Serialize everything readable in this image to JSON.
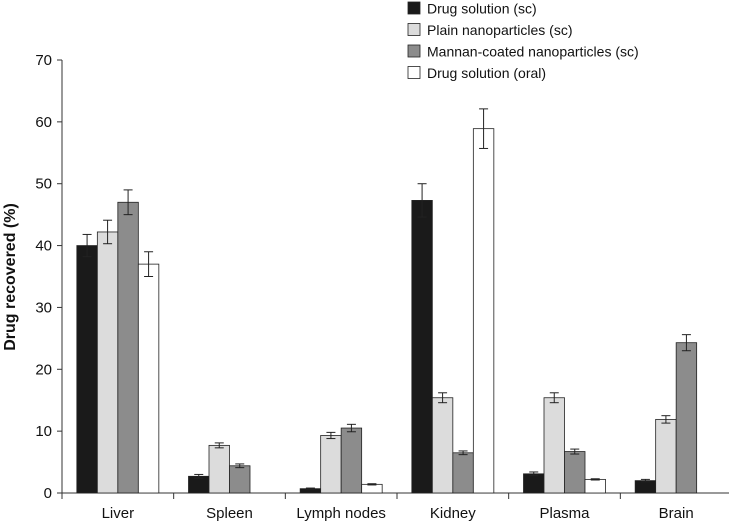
{
  "chart_data": {
    "type": "bar",
    "title": "",
    "xlabel": "",
    "ylabel": "Drug recovered (%)",
    "ylim": [
      0,
      70
    ],
    "yticks": [
      0,
      10,
      20,
      30,
      40,
      50,
      60,
      70
    ],
    "grid": false,
    "legend_position": "top-right",
    "categories": [
      "Liver",
      "Spleen",
      "Lymph nodes",
      "Kidney",
      "Plasma",
      "Brain"
    ],
    "series": [
      {
        "name": "Drug solution (sc)",
        "color": "#1a1a1a",
        "values": [
          40,
          2.7,
          0.7,
          47.3,
          3.1,
          2.0
        ],
        "errors": [
          1.8,
          0.3,
          0.1,
          2.7,
          0.3,
          0.2
        ]
      },
      {
        "name": "Plain nanoparticles (sc)",
        "color": "#dcdcdc",
        "values": [
          42.2,
          7.7,
          9.3,
          15.4,
          15.4,
          11.9
        ],
        "errors": [
          1.9,
          0.4,
          0.5,
          0.8,
          0.8,
          0.6
        ]
      },
      {
        "name": "Mannan-coated nanoparticles (sc)",
        "color": "#8c8c8c",
        "values": [
          47,
          4.4,
          10.5,
          6.5,
          6.7,
          24.3
        ],
        "errors": [
          2.0,
          0.3,
          0.6,
          0.3,
          0.4,
          1.3
        ]
      },
      {
        "name": "Drug solution (oral)",
        "color": "#ffffff",
        "values": [
          37,
          null,
          1.4,
          58.9,
          2.2,
          null
        ],
        "errors": [
          2.0,
          null,
          0.1,
          3.2,
          0.1,
          null
        ]
      }
    ]
  }
}
